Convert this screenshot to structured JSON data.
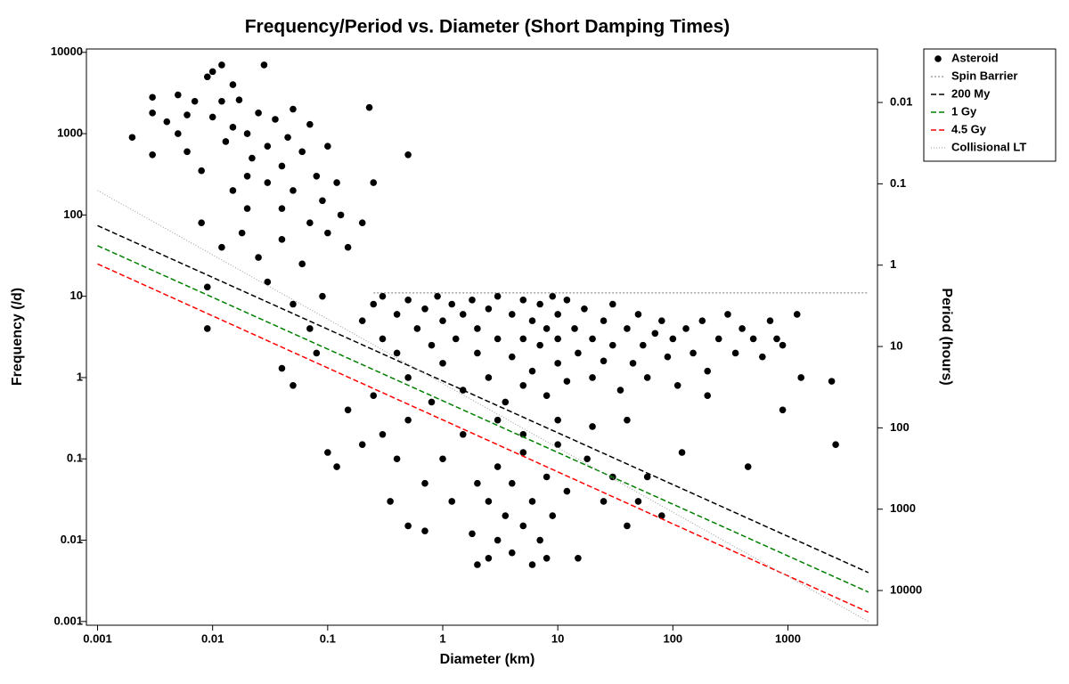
{
  "chart_data": {
    "type": "scatter",
    "title": "Frequency/Period vs. Diameter (Short Damping Times)",
    "x_label": "Diameter (km)",
    "y_label": "Frequency (/d)",
    "y2_label": "Period (hours)",
    "log_x": true,
    "log_y": true,
    "log_y2": true,
    "xlim": [
      0.0008,
      6000
    ],
    "ylim": [
      0.0009,
      11000
    ],
    "y2lim": [
      26700,
      0.0022
    ],
    "xticks": [
      0.001,
      0.01,
      0.1,
      1,
      10,
      100,
      1000
    ],
    "yticks": [
      0.001,
      0.01,
      0.1,
      1,
      10,
      100,
      1000,
      10000
    ],
    "y2ticks": [
      0.01,
      0.1,
      1,
      10,
      100,
      1000,
      10000
    ],
    "legend": "outside-top-right",
    "series": [
      {
        "name": "Asteroid",
        "color": "#000000",
        "marker": "circle",
        "x": [
          0.002,
          0.003,
          0.003,
          0.003,
          0.004,
          0.005,
          0.005,
          0.006,
          0.006,
          0.007,
          0.008,
          0.009,
          0.01,
          0.01,
          0.012,
          0.012,
          0.013,
          0.015,
          0.015,
          0.017,
          0.02,
          0.02,
          0.022,
          0.025,
          0.028,
          0.03,
          0.03,
          0.035,
          0.04,
          0.04,
          0.045,
          0.05,
          0.05,
          0.06,
          0.07,
          0.07,
          0.08,
          0.09,
          0.1,
          0.1,
          0.12,
          0.13,
          0.15,
          0.2,
          0.23,
          0.25,
          0.5,
          0.008,
          0.009,
          0.009,
          0.012,
          0.02,
          0.025,
          0.03,
          0.04,
          0.05,
          0.06,
          0.07,
          0.09,
          0.015,
          0.018,
          0.04,
          0.05,
          0.08,
          0.1,
          0.12,
          0.15,
          0.2,
          0.25,
          0.3,
          0.35,
          0.4,
          0.5,
          0.5,
          0.7,
          0.7,
          0.8,
          1,
          1.2,
          1.5,
          1.8,
          2,
          2,
          2.5,
          2.5,
          3,
          3,
          3.5,
          4,
          4,
          5,
          5,
          6,
          6,
          7,
          8,
          8,
          9,
          10,
          12,
          15,
          18,
          25,
          30,
          40,
          50,
          60,
          80,
          120,
          450,
          2600,
          0.2,
          0.25,
          0.3,
          0.3,
          0.4,
          0.4,
          0.5,
          0.5,
          0.6,
          0.7,
          0.8,
          0.9,
          1,
          1,
          1.2,
          1.3,
          1.5,
          1.5,
          1.8,
          2,
          2,
          2.5,
          2.5,
          3,
          3,
          3.5,
          4,
          4,
          5,
          5,
          5,
          6,
          6,
          7,
          7,
          8,
          8,
          9,
          10,
          10,
          10,
          12,
          12,
          14,
          15,
          17,
          20,
          20,
          25,
          25,
          30,
          30,
          35,
          40,
          45,
          50,
          55,
          60,
          70,
          80,
          90,
          100,
          110,
          130,
          150,
          180,
          200,
          250,
          300,
          350,
          400,
          500,
          600,
          700,
          800,
          900,
          1200,
          1300,
          2400,
          900,
          200,
          3,
          10,
          20,
          5,
          40
        ],
        "values": [
          900,
          2800,
          1800,
          550,
          1400,
          3000,
          1000,
          1700,
          600,
          2500,
          350,
          5000,
          5800,
          1600,
          7000,
          2500,
          800,
          4000,
          1200,
          2600,
          300,
          1000,
          500,
          1800,
          7000,
          700,
          250,
          1500,
          400,
          120,
          900,
          2000,
          200,
          600,
          1300,
          80,
          300,
          150,
          700,
          60,
          250,
          100,
          40,
          80,
          2100,
          250,
          550,
          80,
          13,
          4,
          40,
          120,
          30,
          15,
          50,
          8,
          25,
          4,
          10,
          200,
          60,
          1.3,
          0.8,
          2,
          0.12,
          0.08,
          0.4,
          0.15,
          0.6,
          0.2,
          0.03,
          0.1,
          0.015,
          0.3,
          0.05,
          0.013,
          0.5,
          0.1,
          0.03,
          0.2,
          0.012,
          0.05,
          0.005,
          0.03,
          0.006,
          0.01,
          0.08,
          0.02,
          0.007,
          0.05,
          0.015,
          0.12,
          0.005,
          0.03,
          0.01,
          0.06,
          0.006,
          0.02,
          0.15,
          0.04,
          0.006,
          0.1,
          0.03,
          0.06,
          0.015,
          0.03,
          0.06,
          0.02,
          0.12,
          0.08,
          0.15,
          5,
          8,
          3,
          10,
          6,
          2,
          9,
          1,
          4,
          7,
          2.5,
          10,
          5,
          1.5,
          8,
          3,
          0.7,
          6,
          9,
          2,
          4,
          7,
          1,
          10,
          3,
          0.5,
          6,
          1.8,
          9,
          3,
          0.8,
          5,
          1.2,
          8,
          2.5,
          4,
          0.6,
          10,
          6,
          1.5,
          3,
          9,
          0.9,
          4,
          2,
          7,
          3,
          1,
          5,
          1.6,
          8,
          2.5,
          0.7,
          4,
          1.5,
          6,
          2.5,
          1,
          3.5,
          5,
          1.8,
          3,
          0.8,
          4,
          2,
          5,
          1.2,
          3,
          6,
          2,
          4,
          3,
          1.8,
          5,
          3,
          2.5,
          6,
          1,
          0.9,
          0.4,
          0.6,
          0.3,
          0.3,
          0.25,
          0.2,
          0.3
        ]
      },
      {
        "name": "Spin Barrier",
        "color": "#777777",
        "dash": "dotted",
        "x": [
          0.25,
          5000
        ],
        "values": [
          11,
          11
        ]
      },
      {
        "name": "200 My",
        "color": "#000000",
        "dash": "dashed",
        "x": [
          0.001,
          5000
        ],
        "values": [
          74,
          0.004
        ]
      },
      {
        "name": "1 Gy",
        "color": "#008000",
        "dash": "dashed",
        "x": [
          0.001,
          5000
        ],
        "values": [
          42,
          0.0023
        ]
      },
      {
        "name": "4.5 Gy",
        "color": "#ff0000",
        "dash": "dashed",
        "x": [
          0.001,
          5000
        ],
        "values": [
          25,
          0.0013
        ]
      },
      {
        "name": "Collisional LT",
        "color": "#999999",
        "dash": "fine",
        "x": [
          0.001,
          5000
        ],
        "values": [
          200,
          0.001
        ]
      }
    ]
  }
}
